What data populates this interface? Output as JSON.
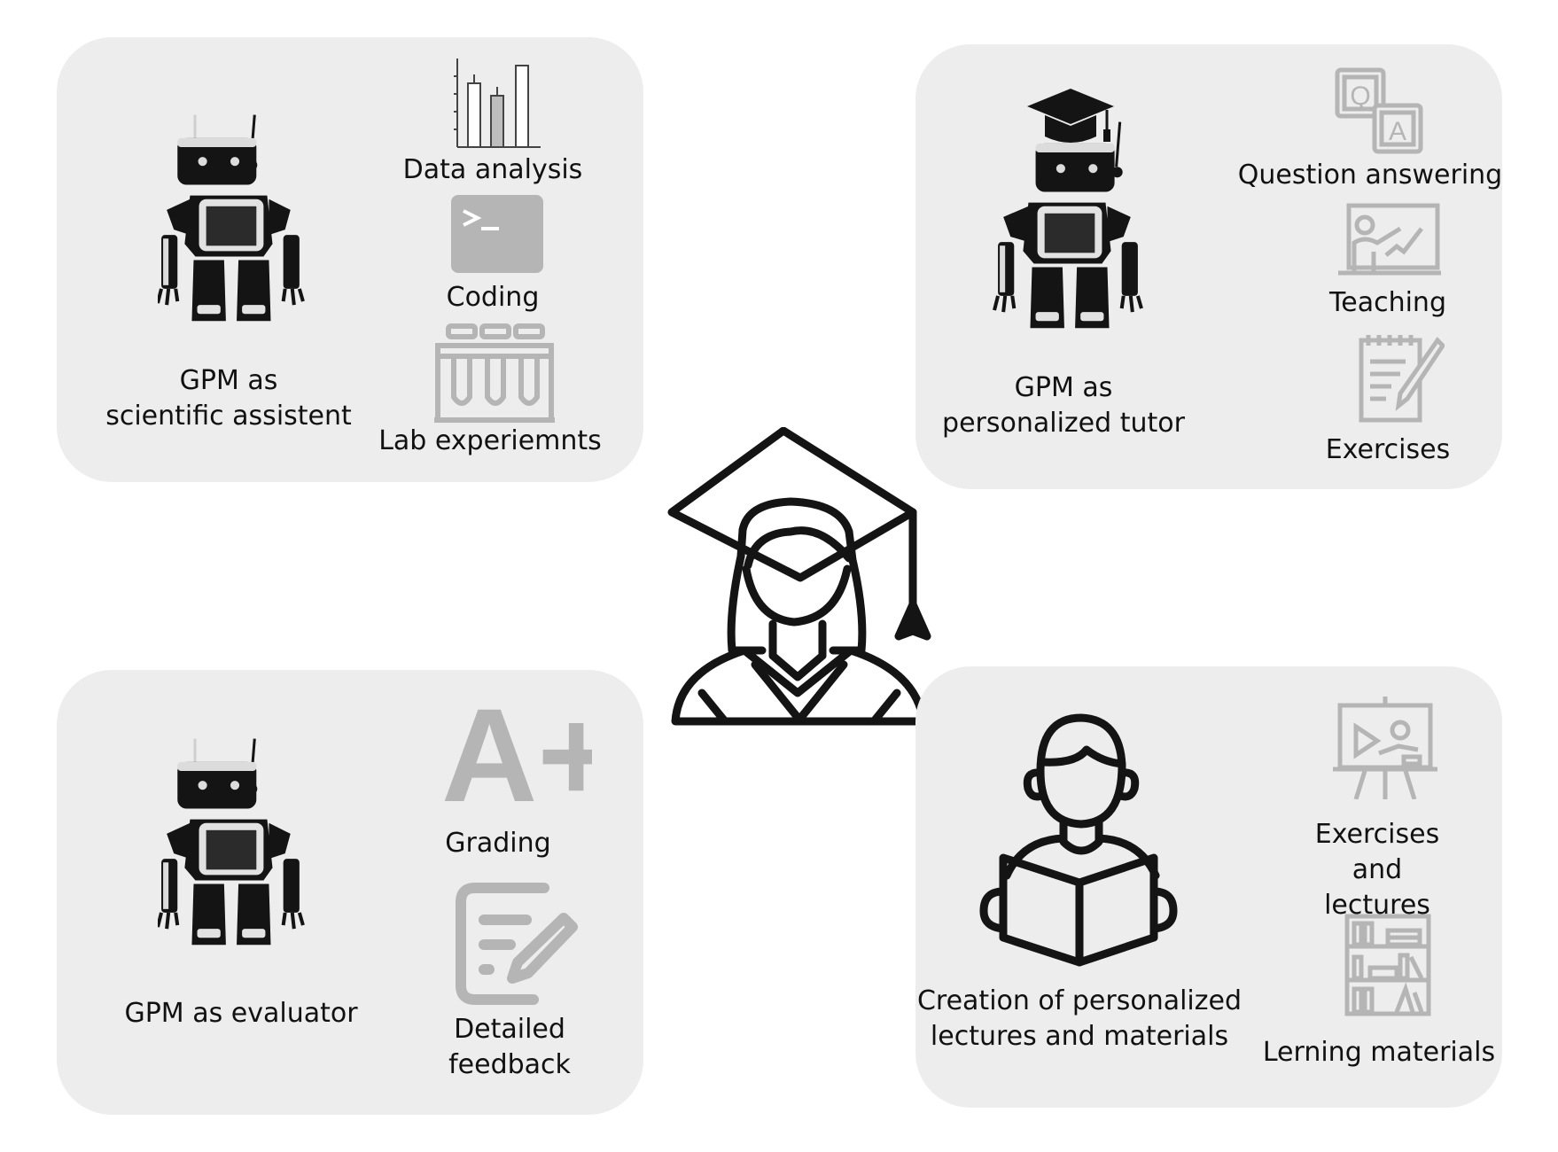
{
  "panels": {
    "scientific": {
      "title": "GPM as\nscientific assistent",
      "items": [
        "Data analysis",
        "Coding",
        "Lab experiemnts"
      ],
      "icons": [
        "bar-chart-icon",
        "terminal-icon",
        "test-tubes-icon"
      ]
    },
    "tutor": {
      "title": "GPM as\npersonalized tutor",
      "items": [
        "Question answering",
        "Teaching",
        "Exercises"
      ],
      "icons": [
        "qa-cards-icon",
        "teacher-board-icon",
        "notepad-pencil-icon"
      ]
    },
    "evaluator": {
      "title": "GPM as evaluator",
      "items": [
        "Grading",
        "Detailed\nfeedback"
      ],
      "icons": [
        "a-plus-grade-icon",
        "feedback-edit-icon"
      ],
      "grade_text": "A+"
    },
    "creation": {
      "title": "Creation of personalized\nlectures and materials",
      "items": [
        "Exercises and\nlectures",
        "Lerning materials"
      ],
      "icons": [
        "presentation-board-icon",
        "bookshelf-icon"
      ]
    }
  },
  "center_icon": "graduate-student-icon",
  "colors": {
    "panel_bg": "#ededed",
    "icon_gray": "#b5b5b5",
    "dark": "#141414"
  }
}
